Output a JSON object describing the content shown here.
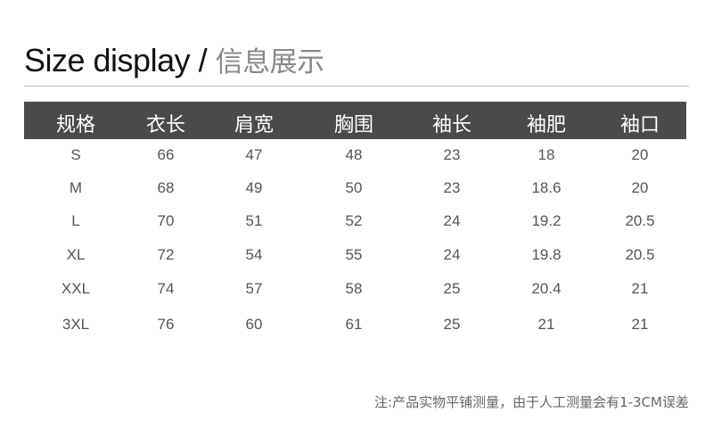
{
  "title": {
    "en": "Size display /",
    "cn": "信息展示"
  },
  "table": {
    "headers": [
      "规格",
      "衣长",
      "肩宽",
      "胸围",
      "袖长",
      "袖肥",
      "袖口"
    ],
    "rows": [
      [
        "S",
        "66",
        "47",
        "48",
        "23",
        "18",
        "20"
      ],
      [
        "M",
        "68",
        "49",
        "50",
        "23",
        "18.6",
        "20"
      ],
      [
        "L",
        "70",
        "51",
        "52",
        "24",
        "19.2",
        "20.5"
      ],
      [
        "XL",
        "72",
        "54",
        "55",
        "24",
        "19.8",
        "20.5"
      ],
      [
        "XXL",
        "74",
        "57",
        "58",
        "25",
        "20.4",
        "21"
      ],
      [
        "3XL",
        "76",
        "60",
        "61",
        "25",
        "21",
        "21"
      ]
    ]
  },
  "note": "注:产品实物平铺测量，由于人工测量会有1-3CM误差",
  "colors": {
    "header_bg": "#4a4a4a",
    "header_text": "#ffffff",
    "body_text": "#555555"
  }
}
